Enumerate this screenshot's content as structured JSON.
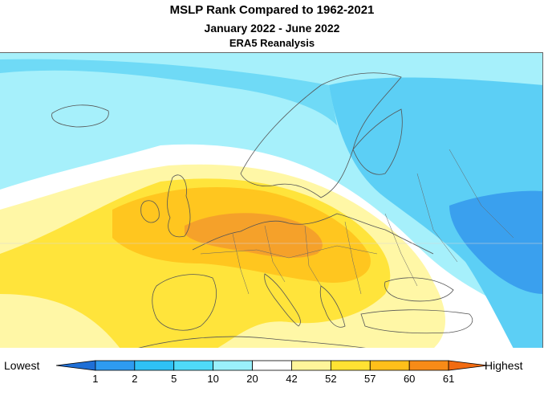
{
  "title": {
    "line1": "MSLP Rank Compared to 1962-2021",
    "line2": "January 2022 - June 2022",
    "line3": "ERA5 Reanalysis"
  },
  "legend": {
    "low_label": "Lowest",
    "high_label": "Highest",
    "ticks": [
      "1",
      "2",
      "5",
      "10",
      "20",
      "42",
      "52",
      "57",
      "60",
      "61"
    ],
    "colors": [
      "#1f6fd6",
      "#2e9bf0",
      "#2fc1f5",
      "#4fdaf8",
      "#9af0fb",
      "#ffffff",
      "#fff59a",
      "#ffe233",
      "#ffbf1a",
      "#f78b17",
      "#f26b11"
    ]
  },
  "map": {
    "region": "Europe",
    "colors": {
      "deep_blue": "#3aa0ee",
      "mid_blue": "#5ccff5",
      "light_blue": "#a6f0fb",
      "white": "#ffffff",
      "light_yellow": "#fff7a6",
      "yellow": "#ffe43b",
      "amber": "#ffc61f",
      "orange": "#f5a12a",
      "dark_orange": "#ef8a1f"
    }
  }
}
